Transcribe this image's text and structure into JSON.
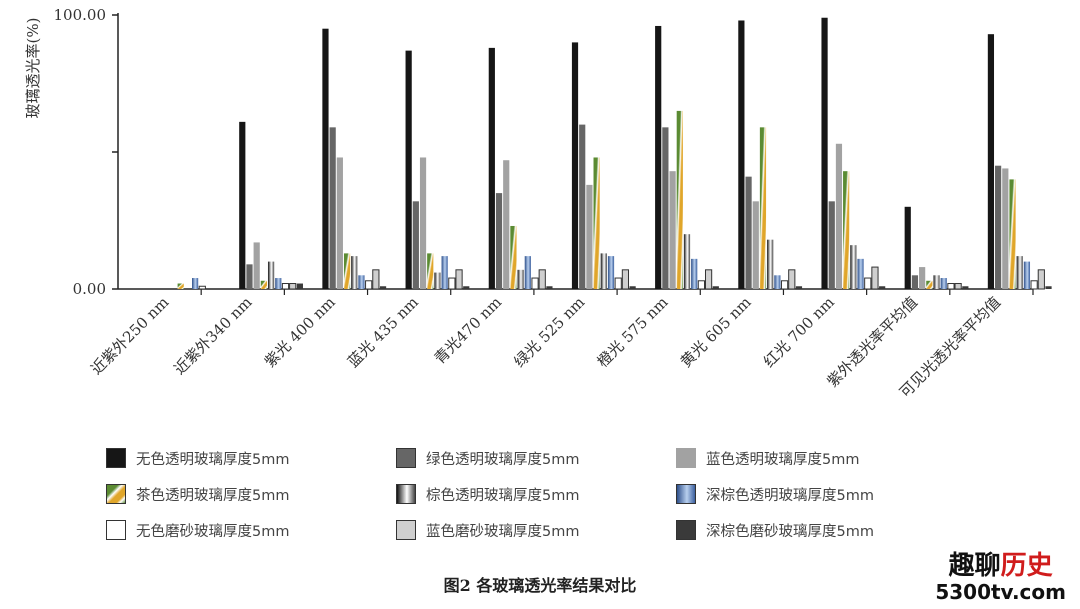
{
  "chart_data": {
    "type": "bar",
    "title": "",
    "xlabel": "",
    "ylabel": "玻璃透光率(%)",
    "ylim": [
      0,
      100
    ],
    "ytick_labels": [
      "100.00",
      "0.00"
    ],
    "categories": [
      "近紫外250 nm",
      "近紫外340 nm",
      "紫光 400 nm",
      "蓝光 435 nm",
      "青光470 nm",
      "绿光 525 nm",
      "橙光 575 nm",
      "黄光 605 nm",
      "红光 700 nm",
      "紫外透光率平均值",
      "可见光透光率平均值"
    ],
    "series": [
      {
        "name": "无色透明玻璃厚度5mm",
        "style": "black",
        "values": [
          0,
          61,
          95,
          87,
          88,
          90,
          96,
          98,
          99,
          30,
          93
        ]
      },
      {
        "name": "绿色透明玻璃厚度5mm",
        "style": "darkgray",
        "values": [
          0,
          9,
          59,
          32,
          35,
          60,
          59,
          41,
          32,
          5,
          45
        ]
      },
      {
        "name": "蓝色透明玻璃厚度5mm",
        "style": "gray",
        "values": [
          0,
          17,
          48,
          48,
          47,
          38,
          43,
          32,
          53,
          8,
          44
        ]
      },
      {
        "name": "茶色透明玻璃厚度5mm",
        "style": "tea",
        "values": [
          2,
          3,
          13,
          13,
          23,
          48,
          65,
          59,
          43,
          3,
          40
        ]
      },
      {
        "name": "棕色透明玻璃厚度5mm",
        "style": "brown-gradient",
        "values": [
          0,
          10,
          12,
          6,
          7,
          13,
          20,
          18,
          16,
          5,
          12
        ]
      },
      {
        "name": "深棕色透明玻璃厚度5mm",
        "style": "blue-gradient",
        "values": [
          4,
          4,
          5,
          12,
          12,
          12,
          11,
          5,
          11,
          4,
          10
        ]
      },
      {
        "name": "无色磨砂玻璃厚度5mm",
        "style": "white",
        "values": [
          1,
          2,
          3,
          4,
          4,
          4,
          3,
          3,
          4,
          2,
          3
        ]
      },
      {
        "name": "蓝色磨砂玻璃厚度5mm",
        "style": "lightgray",
        "values": [
          0,
          2,
          7,
          7,
          7,
          7,
          7,
          7,
          8,
          2,
          7
        ]
      },
      {
        "name": "深棕色磨砂玻璃厚度5mm",
        "style": "darkest",
        "values": [
          0,
          2,
          1,
          1,
          1,
          1,
          1,
          1,
          1,
          1,
          1
        ]
      }
    ]
  },
  "legend": [
    {
      "label": "无色透明玻璃厚度5mm",
      "style": "black"
    },
    {
      "label": "绿色透明玻璃厚度5mm",
      "style": "darkgray"
    },
    {
      "label": " 蓝色透明玻璃厚度5mm",
      "style": "gray"
    },
    {
      "label": "茶色透明玻璃厚度5mm",
      "style": "tea"
    },
    {
      "label": "棕色透明玻璃厚度5mm",
      "style": "brown-gradient"
    },
    {
      "label": "深棕色透明玻璃厚度5mm",
      "style": "blue-gradient"
    },
    {
      "label": "无色磨砂玻璃厚度5mm",
      "style": "white"
    },
    {
      "label": "蓝色磨砂玻璃厚度5mm",
      "style": "lightgray"
    },
    {
      "label": "深棕色磨砂玻璃厚度5mm",
      "style": "darkest"
    }
  ],
  "caption": "图2   各玻璃透光率结果对比",
  "watermark": {
    "part_a": "趣聊",
    "part_b": "历史",
    "url": "5300tv.com"
  }
}
